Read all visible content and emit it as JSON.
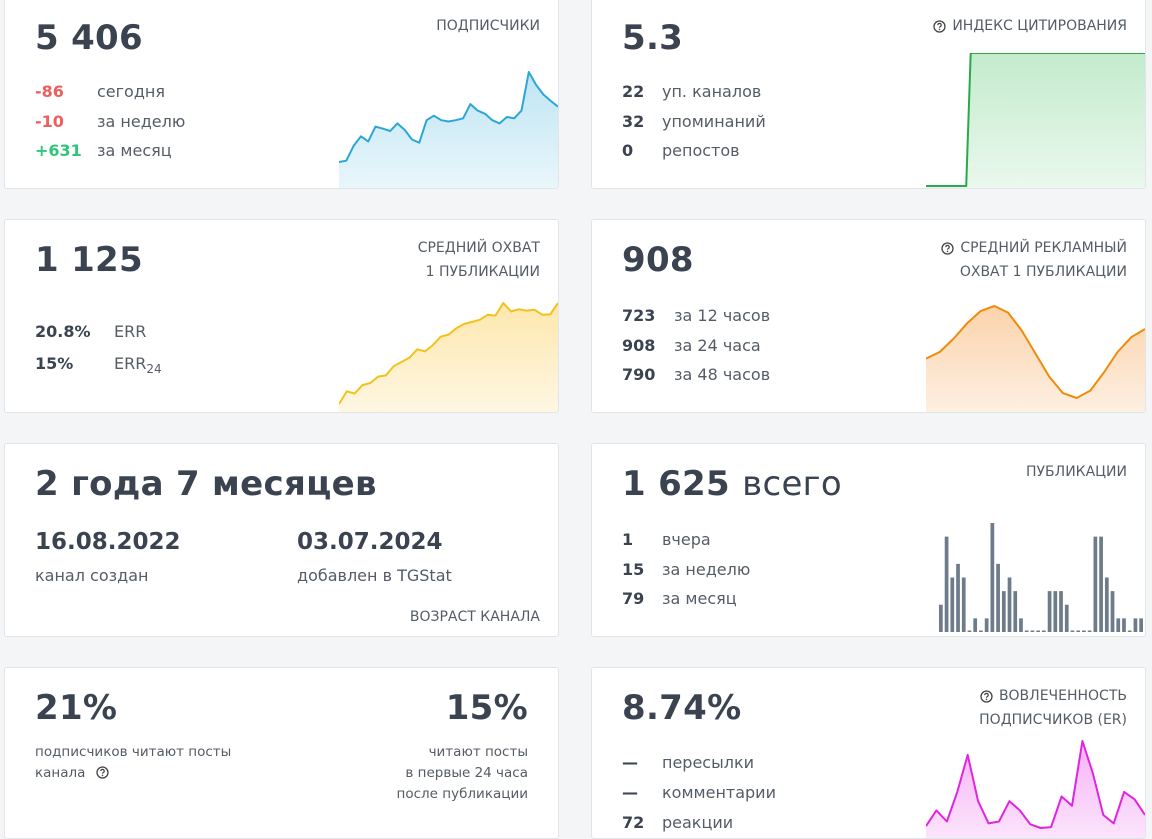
{
  "cards": [
    {
      "kind": "metric",
      "value": "5 406",
      "title": [
        "ПОДПИСЧИКИ"
      ],
      "stats": [
        {
          "value": "-86",
          "label": "сегодня",
          "color": "#ec5f5f"
        },
        {
          "value": "-10",
          "label": "за неделю",
          "color": "#ec5f5f"
        },
        {
          "value": "+631",
          "label": "за месяц",
          "color": "#2fc57a"
        }
      ],
      "chart": {
        "type": "area",
        "color": "#2ba6d6",
        "fill": "#bfe5f3",
        "values": [
          5320,
          5322,
          5345,
          5360,
          5352,
          5375,
          5372,
          5368,
          5380,
          5370,
          5355,
          5350,
          5385,
          5392,
          5385,
          5383,
          5385,
          5388,
          5410,
          5400,
          5395,
          5385,
          5380,
          5390,
          5388,
          5400,
          5460,
          5440,
          5425,
          5415,
          5406
        ]
      }
    },
    {
      "kind": "metric",
      "value": "5.3",
      "title": [
        "ИНДЕКС ЦИТИРОВАНИЯ"
      ],
      "icon": true,
      "stats": [
        {
          "value": "22",
          "label": "уп. каналов"
        },
        {
          "value": "32",
          "label": "упоминаний"
        },
        {
          "value": "0",
          "label": "репостов"
        }
      ],
      "chart": {
        "type": "area",
        "color": "#2aa84a",
        "fill": "#c3ebcc",
        "values": [
          0,
          0,
          0,
          0,
          0,
          0,
          0,
          0,
          0,
          0,
          5.3,
          5.3,
          5.3,
          5.3,
          5.3,
          5.3,
          5.3,
          5.3,
          5.3,
          5.3,
          5.3,
          5.3,
          5.3,
          5.3,
          5.3,
          5.3,
          5.3,
          5.3,
          5.3,
          5.3,
          5.3,
          5.3,
          5.3,
          5.3,
          5.3,
          5.3,
          5.3,
          5.3,
          5.3,
          5.3,
          5.3,
          5.3,
          5.3,
          5.3,
          5.3,
          5.3,
          5.3,
          5.3,
          5.3,
          5.3
        ]
      }
    },
    {
      "kind": "metric",
      "value": "1 125",
      "title": [
        "СРЕДНИЙ ОХВАТ",
        "1 ПУБЛИКАЦИИ"
      ],
      "stats": [
        {
          "value": "20.8%",
          "label": "ERR"
        },
        {
          "value": "15%",
          "label": "ERR",
          "sub": "24"
        }
      ],
      "chart": {
        "type": "area",
        "color": "#f2c21b",
        "fill": "#fde7ad",
        "values": [
          900,
          930,
          925,
          945,
          950,
          965,
          968,
          990,
          1000,
          1010,
          1030,
          1025,
          1040,
          1060,
          1065,
          1080,
          1090,
          1095,
          1100,
          1112,
          1110,
          1140,
          1120,
          1125,
          1122,
          1124,
          1112,
          1113,
          1140
        ]
      }
    },
    {
      "kind": "metric",
      "value": "908",
      "title": [
        "СРЕДНИЙ РЕКЛАМНЫЙ",
        "ОХВАТ 1 ПУБЛИКАЦИИ"
      ],
      "icon": true,
      "stats": [
        {
          "value": "723",
          "label": "за 12 часов"
        },
        {
          "value": "908",
          "label": "за 24 часа"
        },
        {
          "value": "790",
          "label": "за 48 часов"
        }
      ],
      "chart": {
        "type": "area",
        "color": "#f08a0a",
        "fill": "#fbd3ab",
        "values": [
          842,
          850,
          866,
          885,
          900,
          906,
          898,
          876,
          848,
          820,
          800,
          794,
          803,
          825,
          850,
          868,
          878
        ]
      }
    },
    {
      "kind": "age",
      "value": "2 года 7 месяцев",
      "dates": [
        {
          "value": "16.08.2022",
          "label": "канал создан"
        },
        {
          "value": "03.07.2024",
          "label": "добавлен в TGStat"
        }
      ],
      "title": "ВОЗРАСТ КАНАЛА"
    },
    {
      "kind": "metric",
      "value": "1 625",
      "suffix": "всего",
      "title": [
        "ПУБЛИКАЦИИ"
      ],
      "stats": [
        {
          "value": "1",
          "label": "вчера"
        },
        {
          "value": "15",
          "label": "за неделю"
        },
        {
          "value": "79",
          "label": "за месяц"
        }
      ],
      "chart": {
        "type": "bars",
        "color": "#6d7b8a",
        "values": [
          2,
          7,
          4,
          5,
          4,
          0,
          1,
          0,
          1,
          8,
          5,
          3,
          4,
          3,
          1,
          0,
          0,
          0,
          0,
          3,
          3,
          3,
          2,
          0,
          0,
          0,
          0,
          7,
          7,
          4,
          3,
          1,
          1,
          0,
          1,
          1
        ]
      }
    },
    {
      "kind": "split",
      "left": {
        "value": "21%",
        "lines": [
          "подписчиков читают посты",
          "канала"
        ]
      },
      "right": {
        "value": "15%",
        "lines": [
          "читают посты",
          "в первые 24 часа",
          "после публикации"
        ]
      }
    },
    {
      "kind": "metric",
      "value": "8.74%",
      "title": [
        "ВОВЛЕЧЕННОСТЬ",
        "ПОДПИСЧИКОВ (ER)"
      ],
      "icon": true,
      "stats": [
        {
          "value": "—",
          "label": "пересылки"
        },
        {
          "value": "—",
          "label": "комментарии"
        },
        {
          "value": "72",
          "label": "реакции"
        }
      ],
      "chart": {
        "type": "area",
        "color": "#e025e0",
        "fill": "#f6b2f6",
        "values": [
          0.3,
          2,
          0.8,
          4,
          8,
          3,
          0.6,
          0.8,
          3,
          2,
          0.5,
          0.1,
          0.2,
          3.5,
          2.5,
          9.5,
          6,
          1.5,
          0.6,
          4,
          3.2,
          1.5
        ]
      }
    }
  ]
}
